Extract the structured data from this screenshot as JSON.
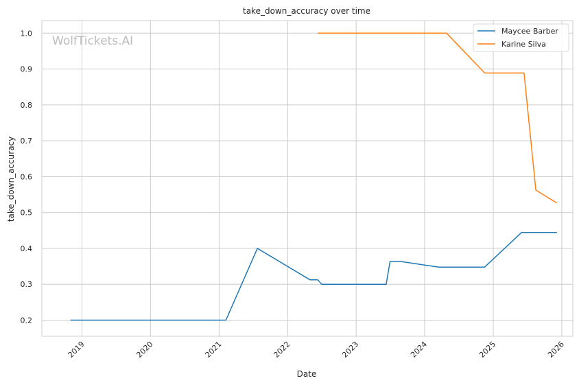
{
  "chart_data": {
    "type": "line",
    "title": "take_down_accuracy over time",
    "xlabel": "Date",
    "ylabel": "take_down_accuracy",
    "watermark": "WolfTickets.AI",
    "xlim": [
      "2018-06-01",
      "2026-03-01"
    ],
    "ylim": [
      0.155,
      1.035
    ],
    "xticks": [
      {
        "date": "2019-01-01",
        "label": "2019"
      },
      {
        "date": "2020-01-01",
        "label": "2020"
      },
      {
        "date": "2021-01-01",
        "label": "2021"
      },
      {
        "date": "2022-01-01",
        "label": "2022"
      },
      {
        "date": "2023-01-01",
        "label": "2023"
      },
      {
        "date": "2024-01-01",
        "label": "2024"
      },
      {
        "date": "2025-01-01",
        "label": "2025"
      },
      {
        "date": "2026-01-01",
        "label": "2026"
      }
    ],
    "yticks": [
      {
        "value": 0.2,
        "label": "0.2"
      },
      {
        "value": 0.3,
        "label": "0.3"
      },
      {
        "value": 0.4,
        "label": "0.4"
      },
      {
        "value": 0.5,
        "label": "0.5"
      },
      {
        "value": 0.6,
        "label": "0.6"
      },
      {
        "value": 0.7,
        "label": "0.7"
      },
      {
        "value": 0.8,
        "label": "0.8"
      },
      {
        "value": 0.9,
        "label": "0.9"
      },
      {
        "value": 1.0,
        "label": "1.0"
      }
    ],
    "grid": true,
    "legend_position": "top-right",
    "series": [
      {
        "name": "Maycee Barber",
        "color": "#1f77b4",
        "points": [
          {
            "x": "2018-11-01",
            "y": 0.2
          },
          {
            "x": "2021-02-06",
            "y": 0.2
          },
          {
            "x": "2021-07-24",
            "y": 0.4
          },
          {
            "x": "2022-04-30",
            "y": 0.3125
          },
          {
            "x": "2022-06-11",
            "y": 0.3125
          },
          {
            "x": "2022-07-01",
            "y": 0.3
          },
          {
            "x": "2023-06-10",
            "y": 0.3
          },
          {
            "x": "2023-07-01",
            "y": 0.3636
          },
          {
            "x": "2023-08-26",
            "y": 0.3636
          },
          {
            "x": "2024-03-16",
            "y": 0.3478
          },
          {
            "x": "2024-11-16",
            "y": 0.3478
          },
          {
            "x": "2025-06-01",
            "y": 0.4444
          },
          {
            "x": "2025-12-06",
            "y": 0.4444
          }
        ]
      },
      {
        "name": "Karine Silva",
        "color": "#ff7f0e",
        "points": [
          {
            "x": "2022-06-11",
            "y": 1.0
          },
          {
            "x": "2024-04-27",
            "y": 1.0
          },
          {
            "x": "2024-11-16",
            "y": 0.8889
          },
          {
            "x": "2025-06-14",
            "y": 0.8889
          },
          {
            "x": "2025-08-16",
            "y": 0.5625
          },
          {
            "x": "2025-12-06",
            "y": 0.5263
          }
        ]
      }
    ]
  }
}
